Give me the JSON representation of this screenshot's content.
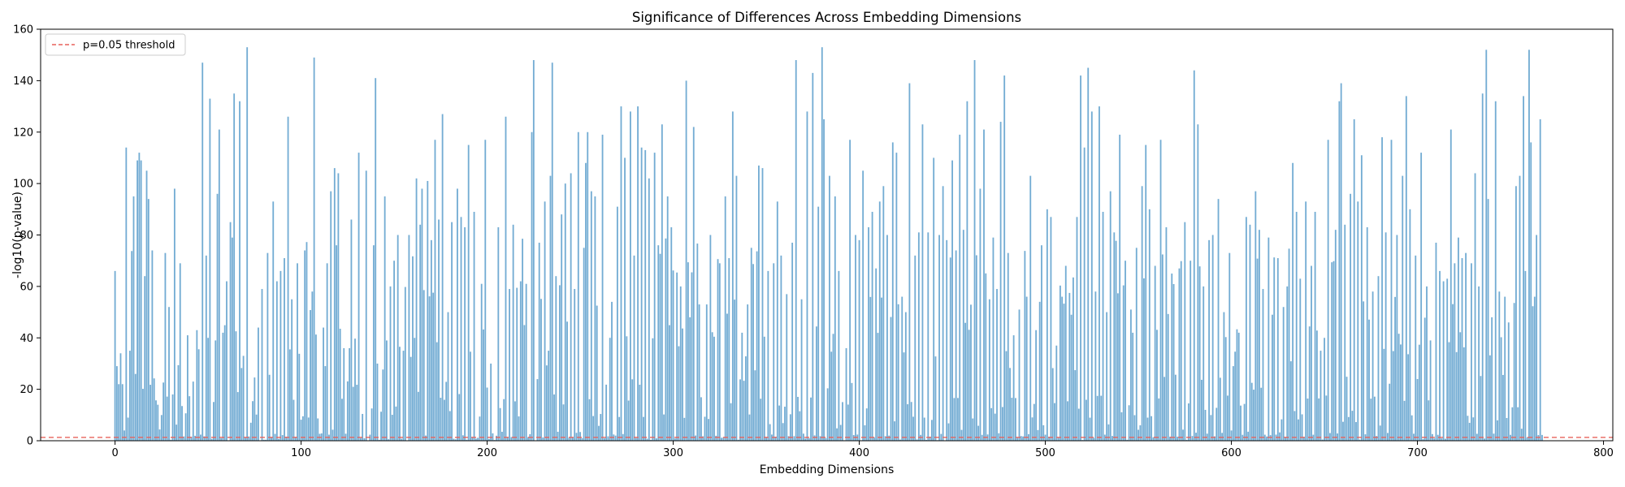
{
  "chart_data": {
    "type": "bar",
    "title": "Significance of Differences Across Embedding Dimensions",
    "xlabel": "Embedding Dimensions",
    "ylabel": "-log10(p-value)",
    "xlim": [
      -40,
      805
    ],
    "ylim": [
      0,
      160
    ],
    "xticks": [
      0,
      100,
      200,
      300,
      400,
      500,
      600,
      700,
      800
    ],
    "yticks": [
      0,
      20,
      40,
      60,
      80,
      100,
      120,
      140,
      160
    ],
    "bar_color": "#5b9ecb",
    "threshold": {
      "value": 1.3,
      "label": "p=0.05 threshold",
      "color": "#e8605a",
      "style": "dashed"
    },
    "legend": {
      "position": "top-left",
      "entries": [
        "p=0.05 threshold"
      ]
    },
    "grid": false,
    "n_dimensions": 768,
    "x_start": 0,
    "highlight_values": [
      [
        0,
        66
      ],
      [
        1,
        29
      ],
      [
        2,
        22
      ],
      [
        3,
        34
      ],
      [
        4,
        22
      ],
      [
        5,
        4
      ],
      [
        6,
        114
      ],
      [
        7,
        9
      ],
      [
        8,
        35
      ],
      [
        10,
        95
      ],
      [
        12,
        109
      ],
      [
        13,
        112
      ],
      [
        14,
        109
      ],
      [
        16,
        64
      ],
      [
        17,
        105
      ],
      [
        18,
        94
      ],
      [
        20,
        74
      ],
      [
        23,
        14
      ],
      [
        25,
        10
      ],
      [
        27,
        73
      ],
      [
        29,
        52
      ],
      [
        31,
        18
      ],
      [
        32,
        98
      ],
      [
        35,
        69
      ],
      [
        39,
        41
      ],
      [
        42,
        23
      ],
      [
        44,
        43
      ],
      [
        47,
        147
      ],
      [
        49,
        72
      ],
      [
        50,
        40
      ],
      [
        51,
        133
      ],
      [
        54,
        39
      ],
      [
        55,
        96
      ],
      [
        56,
        121
      ],
      [
        58,
        42
      ],
      [
        60,
        62
      ],
      [
        62,
        85
      ],
      [
        63,
        79
      ],
      [
        64,
        135
      ],
      [
        67,
        132
      ],
      [
        69,
        33
      ],
      [
        71,
        153
      ],
      [
        73,
        7
      ],
      [
        77,
        44
      ],
      [
        79,
        59
      ],
      [
        82,
        73
      ],
      [
        85,
        93
      ],
      [
        87,
        62
      ],
      [
        89,
        66
      ],
      [
        91,
        71
      ],
      [
        93,
        126
      ],
      [
        95,
        55
      ],
      [
        98,
        69
      ],
      [
        102,
        74
      ],
      [
        106,
        58
      ],
      [
        107,
        149
      ],
      [
        112,
        44
      ],
      [
        114,
        69
      ],
      [
        116,
        97
      ],
      [
        118,
        106
      ],
      [
        119,
        76
      ],
      [
        120,
        104
      ],
      [
        123,
        36
      ],
      [
        126,
        36
      ],
      [
        127,
        86
      ],
      [
        131,
        112
      ],
      [
        135,
        105
      ],
      [
        139,
        76
      ],
      [
        140,
        141
      ],
      [
        141,
        30
      ],
      [
        145,
        95
      ],
      [
        148,
        60
      ],
      [
        150,
        70
      ],
      [
        152,
        80
      ],
      [
        155,
        35
      ],
      [
        158,
        80
      ],
      [
        162,
        102
      ],
      [
        164,
        84
      ],
      [
        165,
        98
      ],
      [
        168,
        101
      ],
      [
        170,
        78
      ],
      [
        172,
        117
      ],
      [
        174,
        86
      ],
      [
        176,
        127
      ],
      [
        179,
        50
      ],
      [
        181,
        85
      ],
      [
        184,
        98
      ],
      [
        186,
        87
      ],
      [
        188,
        83
      ],
      [
        190,
        115
      ],
      [
        193,
        89
      ],
      [
        197,
        61
      ],
      [
        199,
        117
      ],
      [
        202,
        30
      ],
      [
        206,
        83
      ],
      [
        210,
        126
      ],
      [
        212,
        59
      ],
      [
        214,
        84
      ],
      [
        218,
        62
      ],
      [
        221,
        61
      ],
      [
        224,
        120
      ],
      [
        225,
        148
      ],
      [
        228,
        77
      ],
      [
        231,
        93
      ],
      [
        234,
        103
      ],
      [
        235,
        147
      ],
      [
        237,
        64
      ],
      [
        240,
        88
      ],
      [
        242,
        100
      ],
      [
        245,
        104
      ],
      [
        247,
        59
      ],
      [
        249,
        120
      ],
      [
        252,
        75
      ],
      [
        253,
        108
      ],
      [
        254,
        120
      ],
      [
        256,
        97
      ],
      [
        258,
        95
      ],
      [
        262,
        119
      ],
      [
        267,
        54
      ],
      [
        270,
        91
      ],
      [
        272,
        130
      ],
      [
        274,
        110
      ],
      [
        277,
        128
      ],
      [
        279,
        72
      ],
      [
        281,
        130
      ],
      [
        283,
        114
      ],
      [
        285,
        113
      ],
      [
        287,
        102
      ],
      [
        290,
        112
      ],
      [
        292,
        76
      ],
      [
        294,
        123
      ],
      [
        297,
        95
      ],
      [
        299,
        83
      ],
      [
        304,
        60
      ],
      [
        307,
        140
      ],
      [
        309,
        48
      ],
      [
        311,
        122
      ],
      [
        314,
        53
      ],
      [
        318,
        53
      ],
      [
        320,
        80
      ],
      [
        325,
        69
      ],
      [
        328,
        95
      ],
      [
        330,
        71
      ],
      [
        332,
        128
      ],
      [
        334,
        103
      ],
      [
        337,
        42
      ],
      [
        340,
        53
      ],
      [
        342,
        75
      ],
      [
        346,
        107
      ],
      [
        348,
        106
      ],
      [
        351,
        66
      ],
      [
        354,
        69
      ],
      [
        356,
        93
      ],
      [
        358,
        72
      ],
      [
        361,
        57
      ],
      [
        364,
        77
      ],
      [
        366,
        148
      ],
      [
        369,
        55
      ],
      [
        372,
        128
      ],
      [
        375,
        143
      ],
      [
        378,
        91
      ],
      [
        380,
        153
      ],
      [
        381,
        125
      ],
      [
        384,
        103
      ],
      [
        387,
        95
      ],
      [
        389,
        66
      ],
      [
        393,
        36
      ],
      [
        395,
        117
      ],
      [
        398,
        80
      ],
      [
        400,
        78
      ],
      [
        402,
        105
      ],
      [
        405,
        83
      ],
      [
        407,
        89
      ],
      [
        409,
        67
      ],
      [
        411,
        93
      ],
      [
        413,
        99
      ],
      [
        415,
        80
      ],
      [
        418,
        116
      ],
      [
        420,
        112
      ],
      [
        423,
        56
      ],
      [
        425,
        50
      ],
      [
        427,
        139
      ],
      [
        430,
        72
      ],
      [
        432,
        81
      ],
      [
        434,
        123
      ],
      [
        437,
        81
      ],
      [
        440,
        110
      ],
      [
        443,
        80
      ],
      [
        445,
        99
      ],
      [
        447,
        78
      ],
      [
        450,
        109
      ],
      [
        452,
        74
      ],
      [
        454,
        119
      ],
      [
        456,
        82
      ],
      [
        458,
        132
      ],
      [
        462,
        148
      ],
      [
        465,
        98
      ],
      [
        467,
        121
      ],
      [
        470,
        55
      ],
      [
        472,
        79
      ],
      [
        474,
        59
      ],
      [
        476,
        124
      ],
      [
        478,
        142
      ],
      [
        480,
        73
      ],
      [
        483,
        41
      ],
      [
        486,
        51
      ],
      [
        490,
        56
      ],
      [
        492,
        103
      ],
      [
        495,
        43
      ],
      [
        498,
        76
      ],
      [
        501,
        90
      ],
      [
        503,
        87
      ],
      [
        506,
        37
      ],
      [
        509,
        56
      ],
      [
        511,
        68
      ],
      [
        514,
        49
      ],
      [
        517,
        87
      ],
      [
        519,
        142
      ],
      [
        521,
        114
      ],
      [
        523,
        145
      ],
      [
        525,
        128
      ],
      [
        527,
        58
      ],
      [
        529,
        130
      ],
      [
        531,
        89
      ],
      [
        533,
        50
      ],
      [
        535,
        97
      ],
      [
        537,
        81
      ],
      [
        540,
        119
      ],
      [
        543,
        70
      ],
      [
        546,
        51
      ],
      [
        549,
        75
      ],
      [
        552,
        99
      ],
      [
        554,
        115
      ],
      [
        556,
        90
      ],
      [
        559,
        68
      ],
      [
        562,
        117
      ],
      [
        565,
        83
      ],
      [
        568,
        65
      ],
      [
        572,
        67
      ],
      [
        575,
        85
      ],
      [
        578,
        70
      ],
      [
        580,
        144
      ],
      [
        582,
        123
      ],
      [
        585,
        60
      ],
      [
        588,
        78
      ],
      [
        590,
        80
      ],
      [
        593,
        94
      ],
      [
        596,
        50
      ],
      [
        599,
        73
      ],
      [
        601,
        29
      ],
      [
        604,
        42
      ],
      [
        608,
        87
      ],
      [
        610,
        84
      ],
      [
        613,
        97
      ],
      [
        615,
        82
      ],
      [
        617,
        59
      ],
      [
        620,
        79
      ],
      [
        622,
        49
      ],
      [
        625,
        71
      ],
      [
        628,
        52
      ],
      [
        630,
        60
      ],
      [
        633,
        108
      ],
      [
        635,
        89
      ],
      [
        637,
        63
      ],
      [
        640,
        93
      ],
      [
        643,
        68
      ],
      [
        645,
        89
      ],
      [
        648,
        35
      ],
      [
        650,
        40
      ],
      [
        652,
        117
      ],
      [
        656,
        82
      ],
      [
        658,
        132
      ],
      [
        659,
        139
      ],
      [
        661,
        84
      ],
      [
        664,
        96
      ],
      [
        666,
        125
      ],
      [
        668,
        93
      ],
      [
        670,
        111
      ],
      [
        673,
        83
      ],
      [
        676,
        58
      ],
      [
        679,
        64
      ],
      [
        681,
        118
      ],
      [
        683,
        81
      ],
      [
        686,
        117
      ],
      [
        689,
        80
      ],
      [
        692,
        103
      ],
      [
        694,
        134
      ],
      [
        696,
        90
      ],
      [
        699,
        72
      ],
      [
        702,
        112
      ],
      [
        705,
        60
      ],
      [
        707,
        39
      ],
      [
        710,
        77
      ],
      [
        712,
        66
      ],
      [
        714,
        62
      ],
      [
        716,
        63
      ],
      [
        718,
        121
      ],
      [
        720,
        69
      ],
      [
        722,
        79
      ],
      [
        724,
        71
      ],
      [
        726,
        73
      ],
      [
        729,
        69
      ],
      [
        731,
        104
      ],
      [
        733,
        60
      ],
      [
        735,
        135
      ],
      [
        737,
        152
      ],
      [
        738,
        94
      ],
      [
        740,
        48
      ],
      [
        742,
        132
      ],
      [
        744,
        58
      ],
      [
        747,
        56
      ],
      [
        749,
        46
      ],
      [
        751,
        13
      ],
      [
        753,
        99
      ],
      [
        755,
        103
      ],
      [
        757,
        134
      ],
      [
        758,
        66
      ],
      [
        760,
        152
      ],
      [
        761,
        116
      ],
      [
        763,
        56
      ],
      [
        764,
        80
      ],
      [
        766,
        125
      ]
    ]
  }
}
